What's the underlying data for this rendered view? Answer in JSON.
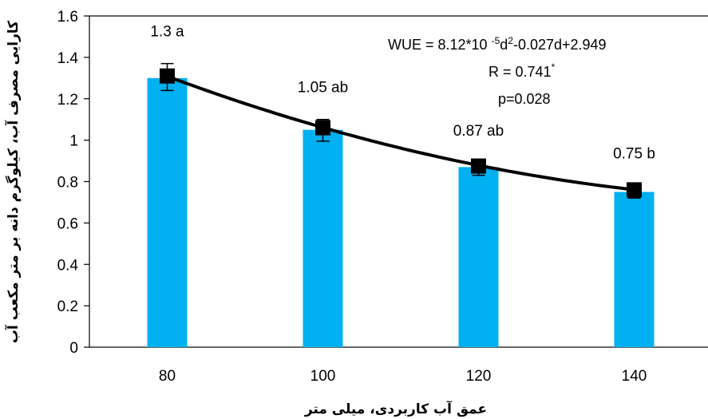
{
  "chart_data": {
    "type": "bar",
    "title": "",
    "xlabel": "عمق آب کاربردی، میلی متر",
    "ylabel": "کارایی مصرف آب، کیلوگرم دانه بر متر مکعب آب",
    "categories": [
      "80",
      "100",
      "120",
      "140"
    ],
    "values": [
      1.3,
      1.05,
      0.87,
      0.75
    ],
    "data_labels": [
      "1.3 a",
      "1.05 ab",
      "0.87 ab",
      "0.75 b"
    ],
    "markers": [
      1.31,
      1.06,
      0.875,
      0.76
    ],
    "error_bars": [
      {
        "low": 1.24,
        "high": 1.37
      },
      {
        "low": 0.995,
        "high": 1.1
      },
      {
        "low": 0.83,
        "high": 0.89
      },
      {
        "low": 0.72,
        "high": 0.78
      }
    ],
    "trendline": {
      "type": "polynomial",
      "coefficients": {
        "a": 8.12e-05,
        "b": -0.027,
        "c": 2.949
      }
    },
    "ylim": [
      0,
      1.6
    ],
    "yticks": [
      "0",
      "0.2",
      "0.4",
      "0.6",
      "0.8",
      "1",
      "1.2",
      "1.4",
      "1.6"
    ],
    "bar_color": "#00B0F0",
    "annotations": {
      "eq_prefix": "WUE = 8.12*10 ",
      "eq_sup1": "-5",
      "eq_mid": "d",
      "eq_sup2": "2",
      "eq_suffix": "-0.027d+2.949",
      "r_text": "R = 0.741",
      "r_sup": "*",
      "p_text": "p=0.028"
    },
    "grid": false,
    "legend": "none"
  }
}
